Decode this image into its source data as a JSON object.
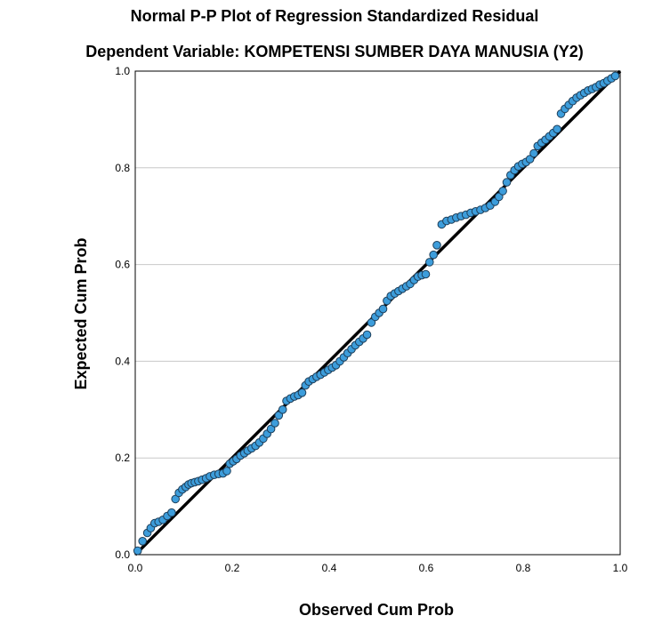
{
  "chart_data": {
    "type": "scatter",
    "title": "Normal P-P Plot of Regression Standardized Residual",
    "subtitle": "Dependent Variable: KOMPETENSI SUMBER DAYA MANUSIA (Y2)",
    "xlabel": "Observed Cum Prob",
    "ylabel": "Expected Cum Prob",
    "xlim": [
      0,
      1
    ],
    "ylim": [
      0,
      1
    ],
    "xticks": [
      "0.0",
      "0.2",
      "0.4",
      "0.6",
      "0.8",
      "1.0"
    ],
    "yticks": [
      "0.0",
      "0.2",
      "0.4",
      "0.6",
      "0.8",
      "1.0"
    ],
    "grid": true,
    "reference_line": {
      "from": [
        0,
        0
      ],
      "to": [
        1,
        1
      ]
    },
    "colors": {
      "point_fill": "#3d9ddb",
      "point_edge": "#1e3f5a",
      "line": "#000000",
      "grid": "#c8c8c8"
    },
    "points": [
      [
        0.005,
        0.008
      ],
      [
        0.015,
        0.028
      ],
      [
        0.025,
        0.045
      ],
      [
        0.032,
        0.055
      ],
      [
        0.04,
        0.065
      ],
      [
        0.048,
        0.068
      ],
      [
        0.057,
        0.072
      ],
      [
        0.066,
        0.08
      ],
      [
        0.075,
        0.087
      ],
      [
        0.083,
        0.115
      ],
      [
        0.09,
        0.128
      ],
      [
        0.097,
        0.135
      ],
      [
        0.104,
        0.14
      ],
      [
        0.11,
        0.145
      ],
      [
        0.116,
        0.148
      ],
      [
        0.123,
        0.15
      ],
      [
        0.13,
        0.152
      ],
      [
        0.138,
        0.155
      ],
      [
        0.146,
        0.158
      ],
      [
        0.154,
        0.162
      ],
      [
        0.163,
        0.165
      ],
      [
        0.172,
        0.167
      ],
      [
        0.181,
        0.168
      ],
      [
        0.189,
        0.173
      ],
      [
        0.195,
        0.188
      ],
      [
        0.202,
        0.193
      ],
      [
        0.209,
        0.198
      ],
      [
        0.217,
        0.205
      ],
      [
        0.225,
        0.21
      ],
      [
        0.232,
        0.215
      ],
      [
        0.24,
        0.22
      ],
      [
        0.248,
        0.225
      ],
      [
        0.256,
        0.232
      ],
      [
        0.264,
        0.24
      ],
      [
        0.272,
        0.25
      ],
      [
        0.28,
        0.26
      ],
      [
        0.288,
        0.272
      ],
      [
        0.296,
        0.288
      ],
      [
        0.304,
        0.3
      ],
      [
        0.312,
        0.318
      ],
      [
        0.32,
        0.323
      ],
      [
        0.328,
        0.327
      ],
      [
        0.336,
        0.33
      ],
      [
        0.344,
        0.335
      ],
      [
        0.351,
        0.35
      ],
      [
        0.358,
        0.358
      ],
      [
        0.366,
        0.363
      ],
      [
        0.374,
        0.368
      ],
      [
        0.382,
        0.372
      ],
      [
        0.39,
        0.377
      ],
      [
        0.398,
        0.382
      ],
      [
        0.406,
        0.387
      ],
      [
        0.414,
        0.392
      ],
      [
        0.422,
        0.4
      ],
      [
        0.43,
        0.408
      ],
      [
        0.438,
        0.417
      ],
      [
        0.446,
        0.425
      ],
      [
        0.454,
        0.433
      ],
      [
        0.462,
        0.44
      ],
      [
        0.47,
        0.447
      ],
      [
        0.478,
        0.455
      ],
      [
        0.487,
        0.48
      ],
      [
        0.495,
        0.492
      ],
      [
        0.503,
        0.5
      ],
      [
        0.511,
        0.508
      ],
      [
        0.519,
        0.525
      ],
      [
        0.527,
        0.535
      ],
      [
        0.535,
        0.54
      ],
      [
        0.543,
        0.545
      ],
      [
        0.551,
        0.55
      ],
      [
        0.559,
        0.555
      ],
      [
        0.567,
        0.56
      ],
      [
        0.575,
        0.568
      ],
      [
        0.583,
        0.575
      ],
      [
        0.591,
        0.578
      ],
      [
        0.599,
        0.58
      ],
      [
        0.607,
        0.605
      ],
      [
        0.615,
        0.62
      ],
      [
        0.622,
        0.64
      ],
      [
        0.632,
        0.683
      ],
      [
        0.642,
        0.69
      ],
      [
        0.652,
        0.693
      ],
      [
        0.662,
        0.697
      ],
      [
        0.672,
        0.7
      ],
      [
        0.682,
        0.703
      ],
      [
        0.692,
        0.707
      ],
      [
        0.702,
        0.71
      ],
      [
        0.712,
        0.713
      ],
      [
        0.722,
        0.717
      ],
      [
        0.732,
        0.722
      ],
      [
        0.742,
        0.73
      ],
      [
        0.75,
        0.74
      ],
      [
        0.758,
        0.752
      ],
      [
        0.766,
        0.77
      ],
      [
        0.774,
        0.785
      ],
      [
        0.782,
        0.795
      ],
      [
        0.79,
        0.803
      ],
      [
        0.798,
        0.808
      ],
      [
        0.806,
        0.812
      ],
      [
        0.814,
        0.818
      ],
      [
        0.822,
        0.83
      ],
      [
        0.83,
        0.845
      ],
      [
        0.838,
        0.852
      ],
      [
        0.846,
        0.858
      ],
      [
        0.854,
        0.865
      ],
      [
        0.862,
        0.872
      ],
      [
        0.87,
        0.88
      ],
      [
        0.878,
        0.912
      ],
      [
        0.886,
        0.922
      ],
      [
        0.894,
        0.93
      ],
      [
        0.902,
        0.938
      ],
      [
        0.91,
        0.945
      ],
      [
        0.918,
        0.95
      ],
      [
        0.926,
        0.955
      ],
      [
        0.934,
        0.96
      ],
      [
        0.942,
        0.963
      ],
      [
        0.95,
        0.967
      ],
      [
        0.958,
        0.972
      ],
      [
        0.966,
        0.975
      ],
      [
        0.974,
        0.98
      ],
      [
        0.982,
        0.985
      ],
      [
        0.99,
        0.99
      ]
    ]
  }
}
